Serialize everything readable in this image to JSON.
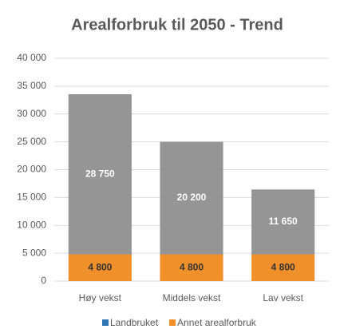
{
  "chart_data": {
    "type": "stacked_bar",
    "title": "Arealforbruk til 2050 - Trend",
    "categories": [
      "Høy vekst",
      "Middels vekst",
      "Lav vekst"
    ],
    "series": [
      {
        "name": "Landbruket",
        "color": "#2e75b6",
        "values": [
          null,
          null,
          null
        ]
      },
      {
        "name": "Annet arealforbruk",
        "color": "#f0902a",
        "values": [
          4800,
          4800,
          4800
        ],
        "value_labels": [
          "4 800",
          "4 800",
          "4 800"
        ],
        "label_color": "#333333"
      },
      {
        "color": "#959595",
        "values": [
          28750,
          20200,
          11650
        ],
        "value_labels": [
          "28 750",
          "20 200",
          "11 650"
        ],
        "label_color": "#ffffff"
      }
    ],
    "ylim": [
      0,
      40000
    ],
    "yticks": [
      0,
      {
        "value": 5000,
        "label": "5 000"
      },
      {
        "value": 10000,
        "label": "10 000"
      },
      {
        "value": 15000,
        "label": "15 000"
      },
      {
        "value": 20000,
        "label": "20 000"
      },
      {
        "value": 25000,
        "label": "25 000"
      },
      {
        "value": 30000,
        "label": "30 000"
      },
      {
        "value": 35000,
        "label": "35 000"
      },
      {
        "value": 40000,
        "label": "40 000"
      }
    ],
    "grid": true
  }
}
